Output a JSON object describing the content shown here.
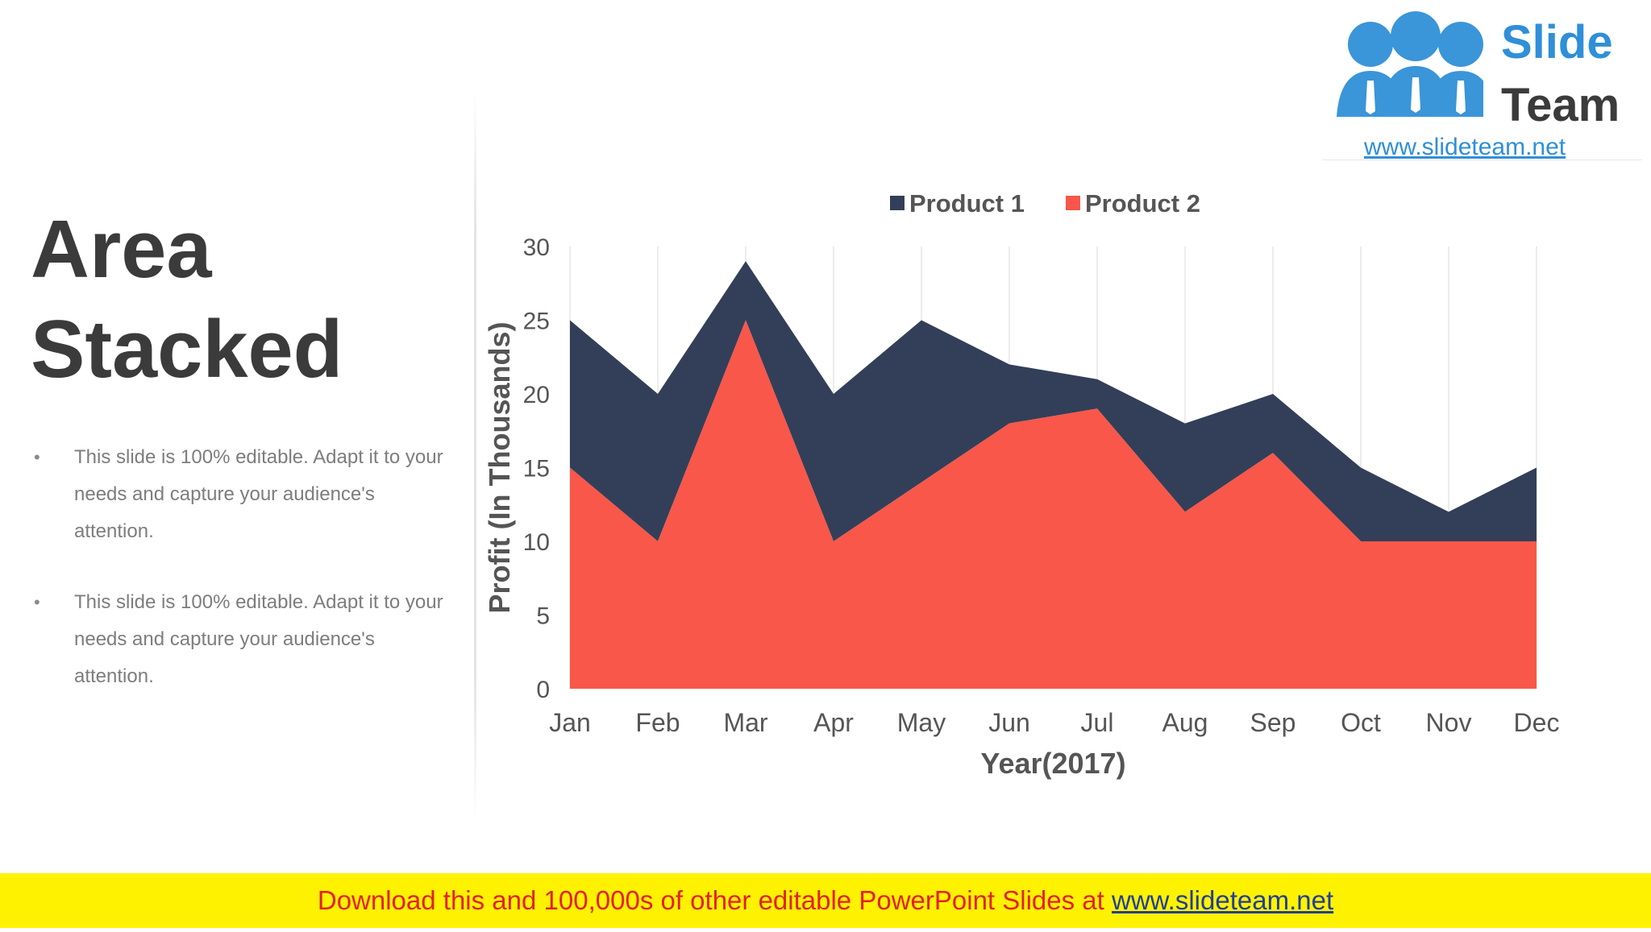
{
  "slide": {
    "title_line1": "Area",
    "title_line2": "Stacked",
    "bullets": [
      "This slide is 100% editable. Adapt it to your needs and capture your audience's attention.",
      "This slide is 100% editable. Adapt it to your needs and capture your audience's attention."
    ]
  },
  "logo": {
    "word1": "Slide",
    "word2": "Team",
    "url": "www.slideteam.net"
  },
  "footer": {
    "text": "Download this and 100,000s of other editable PowerPoint Slides at ",
    "link": "www.slideteam.net"
  },
  "colors": {
    "product1": "#333f58",
    "product2": "#f9574a",
    "logo_blue": "#2f8fd8",
    "logo_dark": "#3b3b3b",
    "footer_bg": "#fff200",
    "footer_text": "#e32121"
  },
  "chart_data": {
    "type": "area",
    "stacked": true,
    "title": "",
    "xlabel": "Year(2017)",
    "ylabel": "Profit (In Thousands)",
    "categories": [
      "Jan",
      "Feb",
      "Mar",
      "Apr",
      "May",
      "Jun",
      "Jul",
      "Aug",
      "Sep",
      "Oct",
      "Nov",
      "Dec"
    ],
    "ylim": [
      0,
      30
    ],
    "yticks": [
      0,
      5,
      10,
      15,
      20,
      25,
      30
    ],
    "grid": "vertical",
    "legend_position": "top",
    "series": [
      {
        "name": "Product 1",
        "color": "#333f58",
        "values": [
          10,
          10,
          4,
          10,
          11,
          4,
          2,
          6,
          4,
          5,
          2,
          5
        ]
      },
      {
        "name": "Product 2",
        "color": "#f9574a",
        "values": [
          15,
          10,
          25,
          10,
          14,
          18,
          19,
          12,
          16,
          10,
          10,
          10
        ]
      }
    ]
  }
}
